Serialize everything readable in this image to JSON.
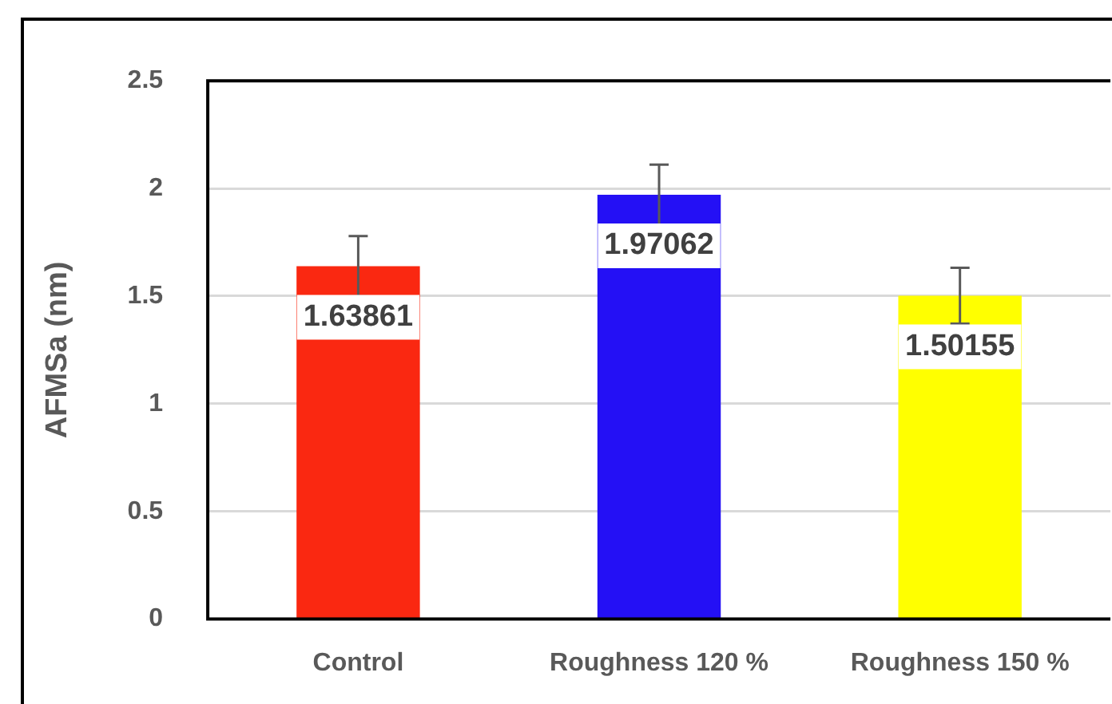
{
  "chart_data": {
    "type": "bar",
    "ylabel": "AFMSa (nm)",
    "categories": [
      "Control",
      "Roughness 120 %",
      "Roughness 150 %"
    ],
    "values": [
      1.63861,
      1.97062,
      1.50155
    ],
    "colors": [
      "#fa2811",
      "#2410f5",
      "#ffff00"
    ],
    "errors": [
      0.14,
      0.14,
      0.13
    ],
    "ylim": [
      0,
      2.5
    ],
    "yticks": [
      0,
      0.5,
      1,
      1.5,
      2,
      2.5
    ],
    "grid": "y",
    "data_labels": true,
    "legend": false
  }
}
